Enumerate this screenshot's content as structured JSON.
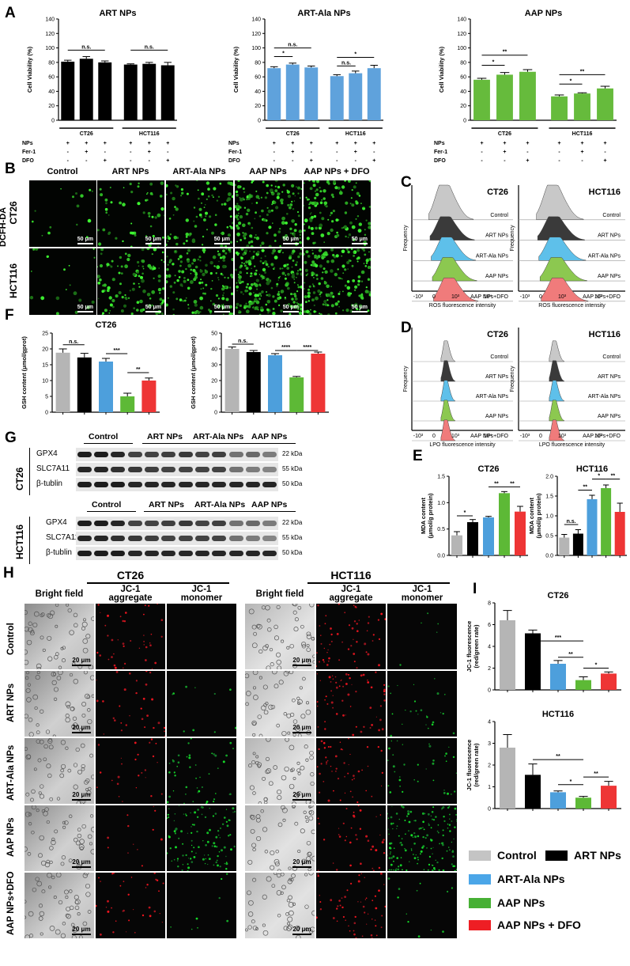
{
  "panels": {
    "A": "A",
    "B": "B",
    "C": "C",
    "D": "D",
    "E": "E",
    "F": "F",
    "G": "G",
    "H": "H",
    "I": "I"
  },
  "colors": {
    "control": "#b5b5b5",
    "art": "#000000",
    "artala": "#4d9fdc",
    "aap": "#5db936",
    "aapdfo": "#ee3535",
    "A_art": "#000000",
    "A_artala": "#5fa2dc",
    "A_aap": "#66bb3c"
  },
  "chart_data": [
    {
      "id": "A1",
      "type": "bar",
      "title": "ART NPs",
      "ylabel": "Cell Viability (%)",
      "ylim": [
        0,
        140
      ],
      "yticks": [
        "0",
        "20",
        "40",
        "60",
        "80",
        "100",
        "120",
        "140"
      ],
      "values": [
        81,
        85,
        80,
        77,
        78,
        76
      ],
      "errors": [
        2,
        3,
        2,
        1,
        2,
        4
      ],
      "groups": [
        "CT26",
        "HCT116"
      ],
      "rows": [
        {
          "label": "NPs",
          "marks": [
            "+",
            "+",
            "+",
            "+",
            "+",
            "+"
          ]
        },
        {
          "label": "Fer-1",
          "marks": [
            "-",
            "+",
            "-",
            "-",
            "+",
            "-"
          ]
        },
        {
          "label": "DFO",
          "marks": [
            "-",
            "-",
            "+",
            "-",
            "-",
            "+"
          ]
        }
      ],
      "sig": [
        "n.s.",
        "n.s."
      ]
    },
    {
      "id": "A2",
      "type": "bar",
      "title": "ART-Ala NPs",
      "ylabel": "Cell Viability (%)",
      "ylim": [
        0,
        140
      ],
      "yticks": [
        "0",
        "20",
        "40",
        "60",
        "80",
        "100",
        "120",
        "140"
      ],
      "values": [
        72,
        77,
        73,
        61,
        65,
        72
      ],
      "errors": [
        2,
        2,
        2,
        2,
        3,
        4
      ],
      "groups": [
        "CT26",
        "HCT116"
      ],
      "rows": [
        {
          "label": "NPs",
          "marks": [
            "+",
            "+",
            "+",
            "+",
            "+",
            "+"
          ]
        },
        {
          "label": "Fer-1",
          "marks": [
            "-",
            "+",
            "-",
            "-",
            "+",
            "-"
          ]
        },
        {
          "label": "DFO",
          "marks": [
            "-",
            "-",
            "+",
            "-",
            "-",
            "+"
          ]
        }
      ],
      "sig": [
        "*",
        "n.s.",
        "n.s.",
        "*"
      ]
    },
    {
      "id": "A3",
      "type": "bar",
      "title": "AAP NPs",
      "ylabel": "Cell Viability (%)",
      "ylim": [
        0,
        140
      ],
      "yticks": [
        "0",
        "20",
        "40",
        "60",
        "80",
        "100",
        "120",
        "140"
      ],
      "values": [
        56,
        63,
        67,
        33,
        37,
        44
      ],
      "errors": [
        2,
        3,
        3,
        2,
        1,
        3
      ],
      "groups": [
        "CT26",
        "HCT116"
      ],
      "rows": [
        {
          "label": "NPs",
          "marks": [
            "+",
            "+",
            "+",
            "+",
            "+",
            "+"
          ]
        },
        {
          "label": "Fer-1",
          "marks": [
            "-",
            "+",
            "-",
            "-",
            "+",
            "-"
          ]
        },
        {
          "label": "DFO",
          "marks": [
            "-",
            "-",
            "+",
            "-",
            "-",
            "+"
          ]
        }
      ],
      "sig": [
        "*",
        "**",
        "*",
        "**"
      ]
    },
    {
      "id": "F1",
      "type": "bar",
      "title": "CT26",
      "ylabel": "GSH content (μmol/gprot)",
      "ylim": [
        0,
        25
      ],
      "yticks": [
        "0",
        "5",
        "10",
        "15",
        "20",
        "25"
      ],
      "values": [
        18.8,
        17.3,
        16.0,
        5.0,
        10.0
      ],
      "errors": [
        1.2,
        1.3,
        1.0,
        1.0,
        0.8
      ],
      "sig": [
        "n.s.",
        "***",
        "**"
      ]
    },
    {
      "id": "F2",
      "type": "bar",
      "title": "HCT116",
      "ylabel": "GSH content (μmol/gprot)",
      "ylim": [
        0,
        50
      ],
      "yticks": [
        "0",
        "10",
        "20",
        "30",
        "40",
        "50"
      ],
      "values": [
        40.0,
        38.0,
        36.0,
        22.0,
        37.0
      ],
      "errors": [
        1.2,
        1.0,
        1.0,
        0.6,
        1.0
      ],
      "sig": [
        "n.s.",
        "****",
        "****"
      ]
    },
    {
      "id": "E1",
      "type": "bar",
      "title": "CT26",
      "ylabel": "MDA content (μmol/g protein)",
      "ylim": [
        0,
        1.5
      ],
      "yticks": [
        "0.0",
        "0.5",
        "1.0",
        "1.5"
      ],
      "values": [
        0.38,
        0.63,
        0.72,
        1.18,
        0.83
      ],
      "errors": [
        0.07,
        0.05,
        0.02,
        0.03,
        0.1
      ],
      "sig": [
        "*",
        "**",
        "**"
      ]
    },
    {
      "id": "E2",
      "type": "bar",
      "title": "HCT116",
      "ylabel": "MDA content (μmol/g protein)",
      "ylim": [
        0,
        2.0
      ],
      "yticks": [
        "0.0",
        "0.5",
        "1.0",
        "1.5",
        "2.0"
      ],
      "values": [
        0.45,
        0.55,
        1.42,
        1.7,
        1.1
      ],
      "errors": [
        0.08,
        0.1,
        0.1,
        0.08,
        0.22
      ],
      "sig": [
        "n.s.",
        "**",
        "*",
        "**"
      ]
    },
    {
      "id": "I1",
      "type": "bar",
      "title": "CT26",
      "ylabel": "JC-1 fluorescence (red/green rate)",
      "ylim": [
        0,
        8
      ],
      "yticks": [
        "0",
        "2",
        "4",
        "6",
        "8"
      ],
      "values": [
        6.4,
        5.2,
        2.4,
        0.9,
        1.5
      ],
      "errors": [
        0.9,
        0.3,
        0.3,
        0.3,
        0.15
      ],
      "sig": [
        "***",
        "**",
        "*"
      ]
    },
    {
      "id": "I2",
      "type": "bar",
      "title": "HCT116",
      "ylabel": "JC-1 fluorescence (red/green rate)",
      "ylim": [
        0,
        4
      ],
      "yticks": [
        "0",
        "1",
        "2",
        "3",
        "4"
      ],
      "values": [
        2.8,
        1.55,
        0.75,
        0.5,
        1.05
      ],
      "errors": [
        0.6,
        0.5,
        0.06,
        0.06,
        0.2
      ],
      "sig": [
        "**",
        "*",
        "**"
      ]
    }
  ],
  "flow": {
    "C_ct26": "CT26",
    "C_hct": "HCT116",
    "D_ct26": "CT26",
    "D_hct": "HCT116",
    "frequency": "Frequency",
    "ros_x": "ROS fluorescence intensity",
    "lpo_x": "LPO fluorescence intensity",
    "ros_labels": [
      "Control",
      "ART NPs",
      "ART-Ala NPs",
      "AAP NPs",
      "AAP NPs+DFO"
    ],
    "ticks": [
      "-10³",
      "0",
      "10³",
      "10⁴"
    ]
  },
  "panelB": {
    "columns": [
      "Control",
      "ART NPs",
      "ART-Ala NPs",
      "AAP NPs",
      "AAP NPs + DFO"
    ],
    "rows": [
      "CT26",
      "HCT116"
    ],
    "stain": "DCFH-DA",
    "scale": "50 μm"
  },
  "panelG": {
    "ct26_groups": [
      "Control",
      "ART NPs",
      "ART-Ala NPs",
      "AAP NPs"
    ],
    "hct_groups": [
      "Control",
      "ART NPs",
      "ART-Ala NPs",
      "AAP NPs"
    ],
    "row_ct26": "CT26",
    "row_hct": "HCT116",
    "proteins": [
      "GPX4",
      "SLC7A11",
      "β-tublin"
    ],
    "kda": [
      "22 kDa",
      "55 kDa",
      "50 kDa"
    ]
  },
  "panelH": {
    "ct26": "CT26",
    "hct": "HCT116",
    "cols": [
      "Bright field",
      "JC-1 aggregate",
      "JC-1 monomer"
    ],
    "rows": [
      "Control",
      "ART NPs",
      "ART-Ala NPs",
      "AAP NPs",
      "AAP NPs+DFO"
    ],
    "scale": "20 μm"
  },
  "legend": [
    "Control",
    "ART NPs",
    "ART-Ala NPs",
    "AAP NPs",
    "AAP NPs + DFO"
  ]
}
